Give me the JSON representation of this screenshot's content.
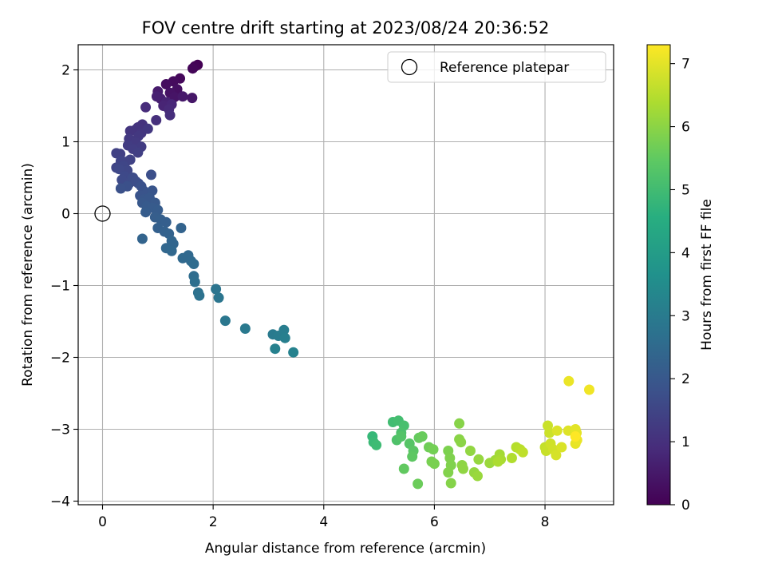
{
  "chart_data": {
    "type": "scatter",
    "title": "FOV centre drift starting at 2023/08/24 20:36:52",
    "xlabel": "Angular distance from reference (arcmin)",
    "ylabel": "Rotation from reference (arcmin)",
    "xlim": [
      -0.44,
      9.24
    ],
    "ylim": [
      -4.05,
      2.35
    ],
    "xticks": [
      0,
      2,
      4,
      6,
      8
    ],
    "yticks": [
      -4,
      -3,
      -2,
      -1,
      0,
      1,
      2
    ],
    "xtick_labels": [
      "0",
      "2",
      "4",
      "6",
      "8"
    ],
    "ytick_labels": [
      "−4",
      "−3",
      "−2",
      "−1",
      "0",
      "1",
      "2"
    ],
    "grid": true,
    "legend": {
      "position": "top-right",
      "label": "Reference platepar"
    },
    "reference_point": {
      "x": 0,
      "y": 0
    },
    "colorbar": {
      "label": "Hours from first FF file",
      "range": [
        0,
        7.3
      ],
      "ticks": [
        0,
        1,
        2,
        3,
        4,
        5,
        6,
        7
      ],
      "tick_labels": [
        "0",
        "1",
        "2",
        "3",
        "4",
        "5",
        "6",
        "7"
      ],
      "colormap": "viridis"
    },
    "points": [
      [
        1.72,
        2.07,
        0.0
      ],
      [
        1.67,
        2.05,
        0.05
      ],
      [
        1.63,
        2.02,
        0.1
      ],
      [
        1.4,
        1.88,
        0.15
      ],
      [
        1.28,
        1.84,
        0.2
      ],
      [
        1.15,
        1.8,
        0.25
      ],
      [
        1.35,
        1.73,
        0.3
      ],
      [
        1.22,
        1.68,
        0.35
      ],
      [
        1.3,
        1.62,
        0.4
      ],
      [
        1.62,
        1.61,
        0.45
      ],
      [
        1.45,
        1.63,
        0.5
      ],
      [
        1.0,
        1.7,
        0.55
      ],
      [
        1.05,
        1.6,
        0.6
      ],
      [
        0.98,
        1.63,
        0.65
      ],
      [
        1.15,
        1.55,
        0.7
      ],
      [
        1.1,
        1.5,
        0.75
      ],
      [
        1.25,
        1.52,
        0.8
      ],
      [
        1.2,
        1.45,
        0.85
      ],
      [
        0.78,
        1.48,
        0.9
      ],
      [
        1.22,
        1.37,
        0.95
      ],
      [
        0.97,
        1.3,
        1.0
      ],
      [
        0.72,
        1.24,
        1.05
      ],
      [
        0.64,
        1.2,
        1.08
      ],
      [
        0.6,
        1.17,
        1.1
      ],
      [
        0.5,
        1.15,
        1.12
      ],
      [
        0.7,
        1.12,
        1.15
      ],
      [
        0.82,
        1.18,
        1.18
      ],
      [
        0.65,
        1.08,
        1.2
      ],
      [
        0.48,
        1.04,
        1.22
      ],
      [
        0.6,
        0.99,
        1.25
      ],
      [
        0.7,
        0.93,
        1.28
      ],
      [
        0.46,
        0.95,
        1.3
      ],
      [
        0.55,
        0.9,
        1.32
      ],
      [
        0.64,
        0.85,
        1.35
      ],
      [
        0.32,
        0.83,
        1.38
      ],
      [
        0.25,
        0.84,
        1.4
      ],
      [
        0.5,
        0.75,
        1.42
      ],
      [
        0.42,
        0.72,
        1.45
      ],
      [
        0.33,
        0.73,
        1.48
      ],
      [
        0.25,
        0.64,
        1.5
      ],
      [
        0.38,
        0.66,
        1.52
      ],
      [
        0.45,
        0.6,
        1.55
      ],
      [
        0.3,
        0.62,
        1.58
      ],
      [
        0.4,
        0.52,
        1.6
      ],
      [
        0.35,
        0.47,
        1.62
      ],
      [
        0.48,
        0.42,
        1.65
      ],
      [
        0.55,
        0.5,
        1.68
      ],
      [
        0.6,
        0.45,
        1.7
      ],
      [
        0.65,
        0.42,
        1.72
      ],
      [
        0.88,
        0.54,
        1.75
      ],
      [
        0.45,
        0.38,
        1.78
      ],
      [
        0.33,
        0.35,
        1.8
      ],
      [
        0.7,
        0.38,
        1.82
      ],
      [
        0.74,
        0.32,
        1.85
      ],
      [
        0.8,
        0.28,
        1.88
      ],
      [
        0.68,
        0.25,
        1.9
      ],
      [
        0.9,
        0.32,
        1.92
      ],
      [
        0.75,
        0.2,
        1.95
      ],
      [
        0.85,
        0.22,
        1.98
      ],
      [
        0.72,
        0.15,
        2.0
      ],
      [
        0.95,
        0.15,
        2.02
      ],
      [
        0.8,
        0.1,
        2.05
      ],
      [
        0.9,
        0.08,
        2.08
      ],
      [
        0.78,
        0.02,
        2.1
      ],
      [
        1.0,
        0.05,
        2.12
      ],
      [
        0.95,
        -0.05,
        2.15
      ],
      [
        1.05,
        -0.08,
        2.18
      ],
      [
        1.15,
        -0.12,
        2.2
      ],
      [
        1.0,
        -0.2,
        2.22
      ],
      [
        1.12,
        -0.25,
        2.25
      ],
      [
        1.2,
        -0.28,
        2.28
      ],
      [
        1.42,
        -0.2,
        2.3
      ],
      [
        0.72,
        -0.35,
        2.32
      ],
      [
        1.25,
        -0.38,
        2.35
      ],
      [
        1.28,
        -0.42,
        2.38
      ],
      [
        1.15,
        -0.48,
        2.4
      ],
      [
        1.25,
        -0.52,
        2.42
      ],
      [
        1.55,
        -0.58,
        2.45
      ],
      [
        1.45,
        -0.62,
        2.48
      ],
      [
        1.6,
        -0.66,
        2.5
      ],
      [
        1.65,
        -0.7,
        2.55
      ],
      [
        1.65,
        -0.87,
        2.6
      ],
      [
        1.67,
        -0.95,
        2.65
      ],
      [
        1.73,
        -1.1,
        2.7
      ],
      [
        1.75,
        -1.14,
        2.75
      ],
      [
        2.05,
        -1.05,
        2.8
      ],
      [
        2.1,
        -1.17,
        2.85
      ],
      [
        2.22,
        -1.49,
        2.9
      ],
      [
        2.58,
        -1.6,
        2.95
      ],
      [
        3.08,
        -1.68,
        3.0
      ],
      [
        3.18,
        -1.7,
        3.05
      ],
      [
        3.28,
        -1.62,
        3.1
      ],
      [
        3.3,
        -1.73,
        3.15
      ],
      [
        3.12,
        -1.88,
        3.2
      ],
      [
        3.45,
        -1.93,
        3.25
      ],
      [
        4.88,
        -3.1,
        4.9
      ],
      [
        4.9,
        -3.18,
        4.95
      ],
      [
        4.95,
        -3.22,
        5.0
      ],
      [
        5.25,
        -2.9,
        5.05
      ],
      [
        5.35,
        -2.88,
        5.1
      ],
      [
        5.45,
        -2.95,
        5.15
      ],
      [
        5.4,
        -3.05,
        5.2
      ],
      [
        5.32,
        -3.15,
        5.25
      ],
      [
        5.4,
        -3.1,
        5.3
      ],
      [
        5.55,
        -3.2,
        5.35
      ],
      [
        5.62,
        -3.3,
        5.4
      ],
      [
        5.6,
        -3.38,
        5.45
      ],
      [
        5.45,
        -3.55,
        5.5
      ],
      [
        5.72,
        -3.12,
        5.55
      ],
      [
        5.78,
        -3.1,
        5.6
      ],
      [
        5.7,
        -3.76,
        5.65
      ],
      [
        5.9,
        -3.25,
        5.7
      ],
      [
        5.98,
        -3.28,
        5.75
      ],
      [
        5.95,
        -3.45,
        5.8
      ],
      [
        6.0,
        -3.48,
        5.82
      ],
      [
        6.25,
        -3.3,
        5.85
      ],
      [
        6.28,
        -3.4,
        5.88
      ],
      [
        6.3,
        -3.5,
        5.9
      ],
      [
        6.25,
        -3.6,
        5.92
      ],
      [
        6.3,
        -3.75,
        5.95
      ],
      [
        6.45,
        -2.92,
        5.97
      ],
      [
        6.45,
        -3.14,
        6.0
      ],
      [
        6.48,
        -3.18,
        6.02
      ],
      [
        6.5,
        -3.5,
        6.05
      ],
      [
        6.52,
        -3.55,
        6.08
      ],
      [
        6.65,
        -3.3,
        6.1
      ],
      [
        6.72,
        -3.6,
        6.12
      ],
      [
        6.8,
        -3.42,
        6.15
      ],
      [
        6.78,
        -3.65,
        6.18
      ],
      [
        7.0,
        -3.47,
        6.2
      ],
      [
        7.1,
        -3.43,
        6.25
      ],
      [
        7.18,
        -3.35,
        6.3
      ],
      [
        7.2,
        -3.42,
        6.35
      ],
      [
        7.15,
        -3.45,
        6.4
      ],
      [
        7.4,
        -3.4,
        6.45
      ],
      [
        7.48,
        -3.25,
        6.5
      ],
      [
        7.55,
        -3.28,
        6.55
      ],
      [
        7.6,
        -3.32,
        6.6
      ],
      [
        8.0,
        -3.25,
        6.65
      ],
      [
        8.02,
        -3.3,
        6.7
      ],
      [
        8.05,
        -2.95,
        6.72
      ],
      [
        8.08,
        -3.05,
        6.75
      ],
      [
        8.1,
        -3.2,
        6.78
      ],
      [
        8.15,
        -3.28,
        6.8
      ],
      [
        8.2,
        -3.36,
        6.85
      ],
      [
        8.3,
        -3.25,
        6.9
      ],
      [
        8.22,
        -3.02,
        6.92
      ],
      [
        8.42,
        -3.02,
        6.95
      ],
      [
        8.55,
        -3.0,
        7.0
      ],
      [
        8.57,
        -3.05,
        7.02
      ],
      [
        8.55,
        -3.2,
        7.05
      ],
      [
        8.58,
        -3.15,
        7.08
      ],
      [
        8.43,
        -2.33,
        7.1
      ],
      [
        8.8,
        -2.45,
        7.15
      ],
      [
        8.55,
        -3.1,
        7.3
      ]
    ]
  }
}
